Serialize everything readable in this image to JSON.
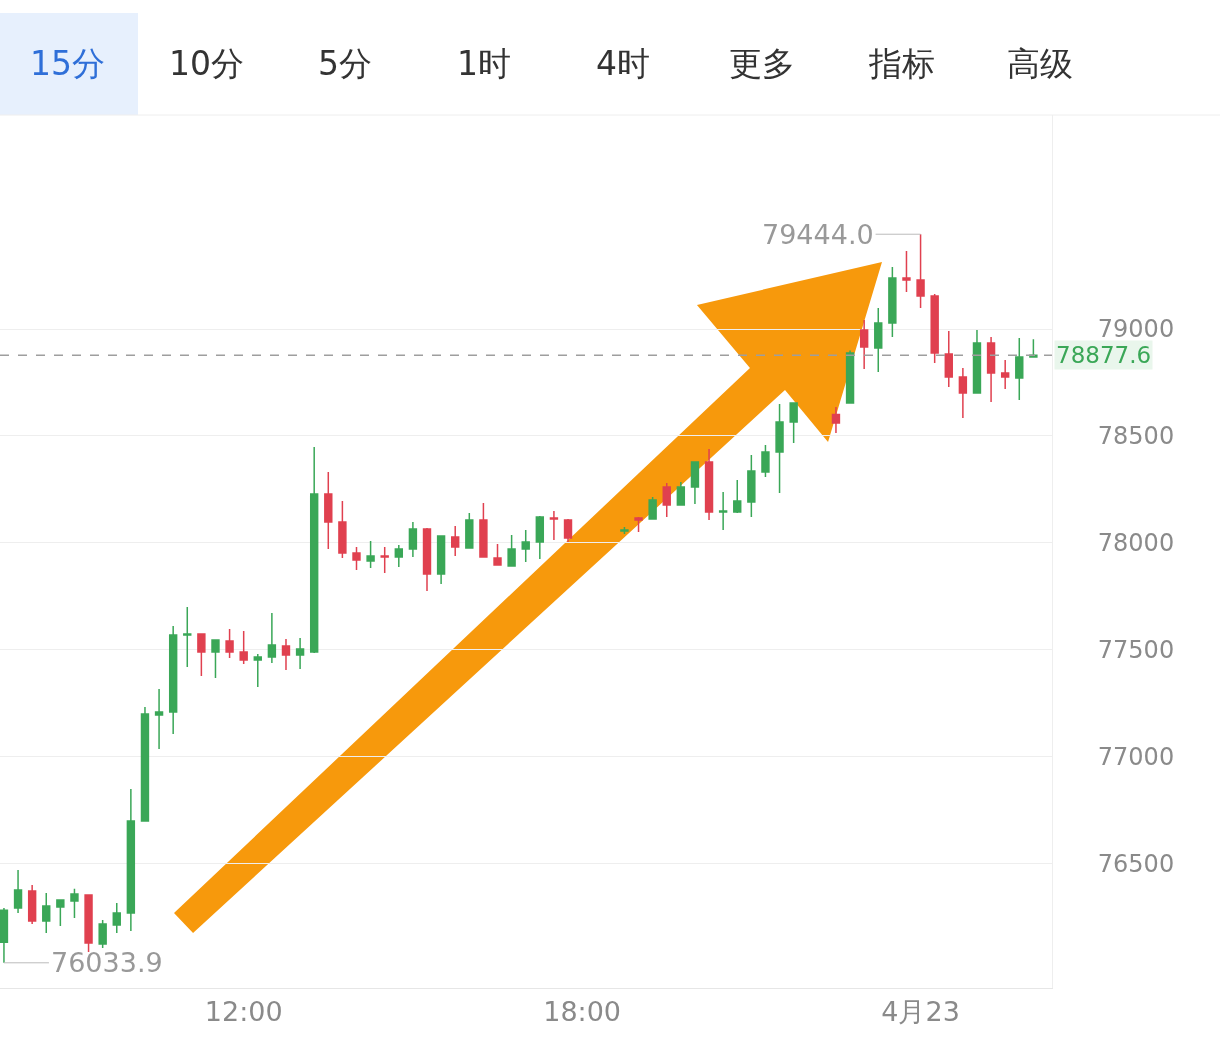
{
  "chart_data": {
    "type": "candlestick",
    "x": [
      7.75,
      8.0,
      8.25,
      8.5,
      8.75,
      9.0,
      9.25,
      9.5,
      9.75,
      10.0,
      10.25,
      10.5,
      10.75,
      11.0,
      11.25,
      11.5,
      11.75,
      12.0,
      12.25,
      12.5,
      12.75,
      13.0,
      13.25,
      13.5,
      13.75,
      14.0,
      14.25,
      14.5,
      14.75,
      15.0,
      15.25,
      15.5,
      15.75,
      16.0,
      16.25,
      16.5,
      16.75,
      17.0,
      17.25,
      17.5,
      17.75,
      18.75,
      19.0,
      19.25,
      19.5,
      19.75,
      20.0,
      20.25,
      20.5,
      20.75,
      21.0,
      21.25,
      21.5,
      21.75,
      22.5,
      22.75,
      23.0,
      23.25,
      23.5,
      23.75,
      24.0,
      24.25,
      24.5,
      24.75,
      25.0,
      25.25,
      25.5,
      25.75,
      26.0
    ],
    "ohlc": [
      [
        76130,
        76290,
        76033.9,
        76280
      ],
      [
        76290,
        76468,
        76267,
        76375
      ],
      [
        76370,
        76398,
        76216,
        76230
      ],
      [
        76230,
        76361,
        76174,
        76300
      ],
      [
        76295,
        76328,
        76206,
        76328
      ],
      [
        76323,
        76380,
        76244,
        76356
      ],
      [
        76351,
        76351,
        76085,
        76127
      ],
      [
        76122,
        76234,
        76103,
        76216
      ],
      [
        76211,
        76314,
        76174,
        76267
      ],
      [
        76267,
        76847,
        76183,
        76698
      ],
      [
        76698,
        77231,
        76698,
        77198
      ],
      [
        77194,
        77315,
        77035,
        77208
      ],
      [
        77208,
        77610,
        77105,
        77568
      ],
      [
        77568,
        77699,
        77418,
        77573
      ],
      [
        77573,
        77573,
        77376,
        77489
      ],
      [
        77489,
        77545,
        77367,
        77545
      ],
      [
        77540,
        77596,
        77461,
        77489
      ],
      [
        77489,
        77587,
        77432,
        77451
      ],
      [
        77451,
        77479,
        77325,
        77465
      ],
      [
        77465,
        77671,
        77437,
        77521
      ],
      [
        77517,
        77550,
        77404,
        77475
      ],
      [
        77475,
        77554,
        77409,
        77503
      ],
      [
        77489,
        78448,
        77484,
        78228
      ],
      [
        78228,
        78331,
        77971,
        78097
      ],
      [
        78097,
        78195,
        77929,
        77952
      ],
      [
        77952,
        77980,
        77872,
        77919
      ],
      [
        77915,
        78008,
        77882,
        77938
      ],
      [
        77938,
        77980,
        77858,
        77933
      ],
      [
        77933,
        77989,
        77886,
        77971
      ],
      [
        77971,
        78097,
        77933,
        78064
      ],
      [
        78064,
        78069,
        77774,
        77854
      ],
      [
        77854,
        78032,
        77807,
        78032
      ],
      [
        78027,
        78078,
        77938,
        77980
      ],
      [
        77975,
        78139,
        77975,
        78106
      ],
      [
        78106,
        78186,
        77933,
        77933
      ],
      [
        77929,
        77994,
        77896,
        77896
      ],
      [
        77891,
        78036,
        77891,
        77971
      ],
      [
        77971,
        78060,
        77910,
        78003
      ],
      [
        78003,
        78125,
        77924,
        78120
      ],
      [
        78116,
        78149,
        78013,
        78111
      ],
      [
        78106,
        78111,
        78003,
        78022
      ],
      [
        78055,
        78074,
        78041,
        78060
      ],
      [
        78116,
        78120,
        78050,
        78106
      ],
      [
        78111,
        78214,
        78111,
        78200
      ],
      [
        78261,
        78280,
        78120,
        78177
      ],
      [
        78177,
        78284,
        78177,
        78261
      ],
      [
        78261,
        78378,
        78181,
        78378
      ],
      [
        78378,
        78439,
        78106,
        78144
      ],
      [
        78144,
        78237,
        78060,
        78149
      ],
      [
        78144,
        78294,
        78139,
        78195
      ],
      [
        78191,
        78411,
        78120,
        78336
      ],
      [
        78331,
        78457,
        78308,
        78425
      ],
      [
        78425,
        78649,
        78233,
        78565
      ],
      [
        78565,
        78654,
        78467,
        78654
      ],
      [
        78600,
        78635,
        78514,
        78560
      ],
      [
        78654,
        78900,
        78654,
        78888
      ],
      [
        78996,
        79042,
        78813,
        78916
      ],
      [
        78911,
        79099,
        78799,
        79028
      ],
      [
        79028,
        79290,
        78963,
        79239
      ],
      [
        79239,
        79365,
        79173,
        79230
      ],
      [
        79230,
        79444.0,
        79099,
        79155
      ],
      [
        79155,
        79164,
        78841,
        78888
      ],
      [
        78883,
        78991,
        78729,
        78776
      ],
      [
        78776,
        78818,
        78584,
        78701
      ],
      [
        78701,
        78996,
        78701,
        78935
      ],
      [
        78935,
        78963,
        78659,
        78794
      ],
      [
        78794,
        78855,
        78720,
        78776
      ],
      [
        78771,
        78958,
        78668,
        78869
      ],
      [
        78869,
        78953,
        78869,
        78877.6
      ]
    ],
    "colors": [
      "#3aa757",
      "#3aa757",
      "#e0404f",
      "#3aa757",
      "#3aa757",
      "#3aa757",
      "#e0404f",
      "#3aa757",
      "#3aa757",
      "#3aa757",
      "#3aa757",
      "#3aa757",
      "#3aa757",
      "#3aa757",
      "#e0404f",
      "#3aa757",
      "#e0404f",
      "#e0404f",
      "#3aa757",
      "#3aa757",
      "#e0404f",
      "#3aa757",
      "#3aa757",
      "#e0404f",
      "#e0404f",
      "#e0404f",
      "#3aa757",
      "#e0404f",
      "#3aa757",
      "#3aa757",
      "#e0404f",
      "#3aa757",
      "#e0404f",
      "#3aa757",
      "#e0404f",
      "#e0404f",
      "#3aa757",
      "#3aa757",
      "#3aa757",
      "#e0404f",
      "#e0404f",
      "#3aa757",
      "#e0404f",
      "#3aa757",
      "#e0404f",
      "#3aa757",
      "#3aa757",
      "#e0404f",
      "#3aa757",
      "#3aa757",
      "#3aa757",
      "#3aa757",
      "#3aa757",
      "#3aa757",
      "#e0404f",
      "#3aa757",
      "#e0404f",
      "#3aa757",
      "#3aa757",
      "#e0404f",
      "#e0404f",
      "#e0404f",
      "#e0404f",
      "#e0404f",
      "#3aa757",
      "#e0404f",
      "#e0404f",
      "#3aa757",
      "#3aa757"
    ],
    "xlim": [
      7.68,
      26.33
    ],
    "xticks": [
      {
        "value": 12,
        "label": "12:00"
      },
      {
        "value": 18,
        "label": "18:00"
      },
      {
        "value": 24,
        "label": "4月23"
      }
    ],
    "ylim": [
      75916,
      80002
    ],
    "yticks": [
      76500,
      77000,
      77500,
      78000,
      78500,
      79000
    ],
    "grid": "y",
    "ref_lines": [
      {
        "axis": "y",
        "value": 78877.6,
        "label": "78877.6",
        "color": "#9e9e9e",
        "line_style": "dashed"
      }
    ],
    "annotations": [
      "15分",
      "10分",
      "5分",
      "1时",
      "4时",
      "更多",
      "指标",
      "高级",
      {
        "text": "79444.0",
        "x": 24,
        "y": 79444.0
      },
      {
        "text": "76033.9",
        "x": 7.75,
        "y": 76033.9
      }
    ]
  }
}
